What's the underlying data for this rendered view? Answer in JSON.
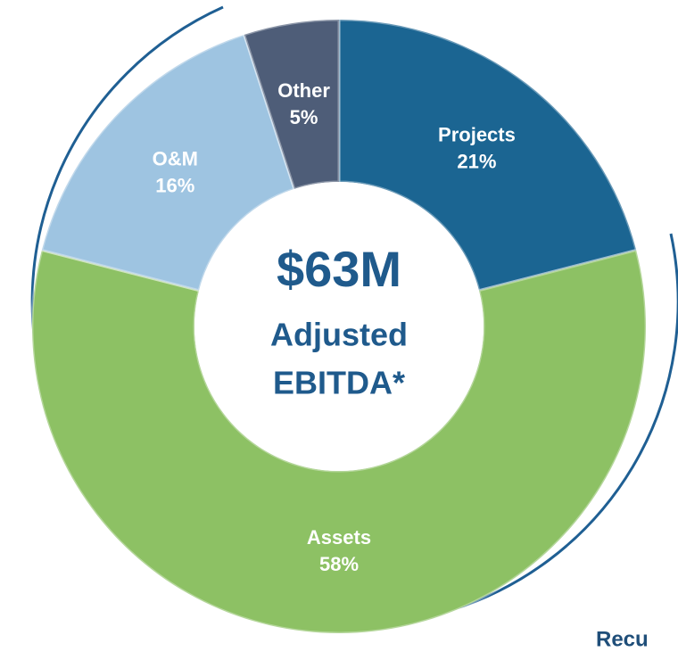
{
  "chart_data": {
    "type": "donut",
    "categories": [
      "Projects",
      "Assets",
      "O&M",
      "Other"
    ],
    "values": [
      21,
      58,
      16,
      5
    ],
    "value_labels": [
      "21%",
      "58%",
      "16%",
      "5%"
    ],
    "colors": [
      "#1b6592",
      "#8dc164",
      "#9ec4e1",
      "#4e5d78"
    ],
    "center_value": "$63M",
    "center_label": [
      "Adjusted",
      "EBITDA*"
    ],
    "footer_text": "Recu"
  }
}
